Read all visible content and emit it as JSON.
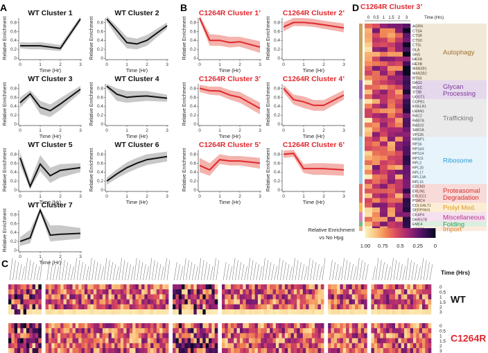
{
  "panel_labels": {
    "a": "A",
    "b": "B",
    "c": "C",
    "d": "D"
  },
  "common": {
    "x_label": "Time (Hr)",
    "y_label": "Relative Enrichment",
    "x_ticks": [
      "0",
      "1",
      "2",
      "3"
    ],
    "y_ticks": [
      "0",
      "0.2",
      "0.4",
      "0.6",
      "0.8"
    ]
  },
  "colors": {
    "wt_line": "#111111",
    "wt_band": "#c8c8c8",
    "mut_line": "#e0282e",
    "mut_band": "#f4b3ad",
    "mut_title": "#e0282e"
  },
  "chart_data": [
    {
      "type": "line",
      "panel": "A",
      "title": "WT Cluster 1",
      "x": [
        0,
        0.5,
        1,
        1.5,
        2,
        3
      ],
      "y": [
        0.28,
        0.28,
        0.28,
        0.25,
        0.22,
        0.88
      ],
      "band_low": [
        0.22,
        0.2,
        0.2,
        0.18,
        0.16,
        0.82
      ],
      "band_high": [
        0.36,
        0.35,
        0.36,
        0.33,
        0.3,
        0.94
      ],
      "ylim": [
        0,
        0.9
      ]
    },
    {
      "type": "line",
      "panel": "A",
      "title": "WT Cluster 2",
      "x": [
        0,
        0.5,
        1,
        1.5,
        2,
        3
      ],
      "y": [
        0.88,
        0.62,
        0.35,
        0.32,
        0.4,
        0.73
      ],
      "band_low": [
        0.82,
        0.48,
        0.22,
        0.2,
        0.28,
        0.66
      ],
      "band_high": [
        0.94,
        0.72,
        0.48,
        0.44,
        0.52,
        0.8
      ],
      "ylim": [
        0,
        0.9
      ]
    },
    {
      "type": "line",
      "panel": "A",
      "title": "WT Cluster 3",
      "x": [
        0,
        0.5,
        1,
        1.5,
        2,
        3
      ],
      "y": [
        0.48,
        0.68,
        0.38,
        0.3,
        0.45,
        0.78
      ],
      "band_low": [
        0.36,
        0.6,
        0.22,
        0.16,
        0.32,
        0.7
      ],
      "band_high": [
        0.6,
        0.76,
        0.52,
        0.44,
        0.58,
        0.86
      ],
      "ylim": [
        0,
        0.9
      ]
    },
    {
      "type": "line",
      "panel": "A",
      "title": "WT Cluster 4",
      "x": [
        0,
        0.5,
        1,
        1.5,
        2,
        3
      ],
      "y": [
        0.85,
        0.67,
        0.6,
        0.62,
        0.63,
        0.58
      ],
      "band_low": [
        0.8,
        0.52,
        0.48,
        0.5,
        0.52,
        0.5
      ],
      "band_high": [
        0.9,
        0.8,
        0.74,
        0.74,
        0.74,
        0.66
      ],
      "ylim": [
        0,
        0.9
      ]
    },
    {
      "type": "line",
      "panel": "A",
      "title": "WT Cluster 5",
      "x": [
        0,
        0.5,
        1,
        1.5,
        2,
        3
      ],
      "y": [
        0.72,
        0.08,
        0.58,
        0.32,
        0.44,
        0.5
      ],
      "band_low": [
        0.55,
        0.02,
        0.42,
        0.16,
        0.28,
        0.4
      ],
      "band_high": [
        0.85,
        0.2,
        0.78,
        0.5,
        0.58,
        0.6
      ],
      "ylim": [
        0,
        0.9
      ]
    },
    {
      "type": "line",
      "panel": "A",
      "title": "WT Cluster 6",
      "x": [
        0,
        0.5,
        1,
        1.5,
        2,
        3
      ],
      "y": [
        0.2,
        0.36,
        0.5,
        0.6,
        0.68,
        0.75
      ],
      "band_low": [
        0.12,
        0.26,
        0.38,
        0.48,
        0.56,
        0.64
      ],
      "band_high": [
        0.28,
        0.46,
        0.62,
        0.72,
        0.8,
        0.86
      ],
      "ylim": [
        0,
        0.9
      ]
    },
    {
      "type": "line",
      "panel": "A",
      "title": "WT Cluster 7",
      "x": [
        0,
        0.5,
        1,
        1.5,
        2,
        3
      ],
      "y": [
        0.2,
        0.28,
        0.9,
        0.34,
        0.36,
        0.38
      ],
      "band_low": [
        0.1,
        0.16,
        0.84,
        0.2,
        0.22,
        0.26
      ],
      "band_high": [
        0.3,
        0.46,
        0.94,
        0.56,
        0.56,
        0.5
      ],
      "ylim": [
        0,
        0.9
      ]
    },
    {
      "type": "line",
      "panel": "B",
      "title": "C1264R Cluster 1’",
      "x": [
        0,
        0.5,
        1,
        1.5,
        2,
        3
      ],
      "y": [
        0.9,
        0.4,
        0.4,
        0.35,
        0.37,
        0.25
      ],
      "band_low": [
        0.84,
        0.28,
        0.28,
        0.24,
        0.26,
        0.12
      ],
      "band_high": [
        0.95,
        0.54,
        0.52,
        0.48,
        0.48,
        0.38
      ],
      "ylim": [
        0,
        0.9
      ]
    },
    {
      "type": "line",
      "panel": "B",
      "title": "C1264R Cluster 2’",
      "x": [
        0,
        0.5,
        1,
        1.5,
        2,
        3
      ],
      "y": [
        0.7,
        0.8,
        0.8,
        0.78,
        0.75,
        0.68
      ],
      "band_low": [
        0.6,
        0.72,
        0.72,
        0.7,
        0.66,
        0.58
      ],
      "band_high": [
        0.8,
        0.9,
        0.9,
        0.88,
        0.84,
        0.78
      ],
      "ylim": [
        0,
        0.9
      ]
    },
    {
      "type": "line",
      "panel": "B",
      "title": "C1264R Cluster 3’",
      "x": [
        0,
        0.5,
        1,
        1.5,
        2,
        3
      ],
      "y": [
        0.8,
        0.75,
        0.74,
        0.65,
        0.6,
        0.35
      ],
      "band_low": [
        0.72,
        0.66,
        0.64,
        0.55,
        0.48,
        0.22
      ],
      "band_high": [
        0.88,
        0.84,
        0.84,
        0.76,
        0.72,
        0.48
      ],
      "ylim": [
        0,
        0.9
      ]
    },
    {
      "type": "line",
      "panel": "B",
      "title": "C1264R Cluster 4’",
      "x": [
        0,
        0.5,
        1,
        1.5,
        2,
        3
      ],
      "y": [
        0.8,
        0.55,
        0.5,
        0.42,
        0.42,
        0.65
      ],
      "band_low": [
        0.72,
        0.44,
        0.36,
        0.3,
        0.3,
        0.55
      ],
      "band_high": [
        0.88,
        0.66,
        0.62,
        0.54,
        0.54,
        0.76
      ],
      "ylim": [
        0,
        0.9
      ]
    },
    {
      "type": "line",
      "panel": "B",
      "title": "C1264R Cluster 5’",
      "x": [
        0,
        0.5,
        1,
        1.5,
        2,
        3
      ],
      "y": [
        0.55,
        0.45,
        0.68,
        0.65,
        0.65,
        0.6
      ],
      "band_low": [
        0.4,
        0.32,
        0.58,
        0.55,
        0.55,
        0.48
      ],
      "band_high": [
        0.72,
        0.6,
        0.8,
        0.76,
        0.76,
        0.72
      ],
      "ylim": [
        0,
        0.9
      ]
    },
    {
      "type": "line",
      "panel": "B",
      "title": "C1264R Cluster 6’",
      "x": [
        0,
        0.5,
        1,
        1.5,
        2,
        3
      ],
      "y": [
        0.8,
        0.82,
        0.48,
        0.48,
        0.48,
        0.45
      ],
      "band_low": [
        0.72,
        0.74,
        0.38,
        0.34,
        0.34,
        0.32
      ],
      "band_high": [
        0.88,
        0.9,
        0.58,
        0.6,
        0.6,
        0.58
      ],
      "ylim": [
        0,
        0.9
      ]
    },
    {
      "type": "heatmap",
      "panel": "D",
      "title": "C1264R Cluster 3’",
      "x_label": "Time (Hrs)",
      "columns": [
        "0",
        "0.5",
        "1",
        "1.5",
        "2",
        "3"
      ],
      "rows": [
        "AGRN",
        "CTSA",
        "CTSB",
        "CTSD",
        "CTSL",
        "GLA",
        "GNS",
        "HEXA",
        "HEXB",
        "MAN2B1",
        "MAN2B2",
        "RTN3",
        "DAG1",
        "MLEC",
        "ST3B",
        "UGGT1",
        "COPB1",
        "KDELR1",
        "LMAN1",
        "RAC2",
        "RAB7A",
        "RAB10",
        "SAR1A",
        "VPS35",
        "RRBP1",
        "RPS6",
        "RPS4X",
        "RPS14",
        "RPS11",
        "RPL3",
        "RPL28",
        "RPL17",
        "RPL13A",
        "RPL15",
        "EDEM3",
        "ERLIN1",
        "ERLEC1",
        "PSMC4",
        "COLGALT1",
        "SERPINH1",
        "CKAP4",
        "DHRS7B",
        "EMC4",
        "SPCS2"
      ],
      "categories": [
        {
          "name": "Autophagy",
          "color": "#c8a25e",
          "text_color": "#9a6e2c",
          "count": 12
        },
        {
          "name": "Glycan Processing",
          "color": "#9a63b5",
          "text_color": "#7a3a98",
          "count": 4
        },
        {
          "name": "Trafficking",
          "color": "#ababab",
          "text_color": "#777777",
          "count": 8
        },
        {
          "name": "Ribosome",
          "color": "#9ed4f0",
          "text_color": "#2a9ed8",
          "count": 10
        },
        {
          "name": "Proteasomal Degradation",
          "color": "#e26b67",
          "text_color": "#d2322f",
          "count": 4
        },
        {
          "name": "Prolyl Mod.",
          "color": "#f2bd54",
          "text_color": "#e09a16",
          "count": 2
        },
        {
          "name": "Miscellaneous",
          "color": "#d982bf",
          "text_color": "#b8338f",
          "count": 2
        },
        {
          "name": "Folding",
          "color": "#6cbf83",
          "text_color": "#2f9b51",
          "count": 1
        },
        {
          "name": "Import",
          "color": "#f0b07a",
          "text_color": "#e27a26",
          "count": 1
        }
      ],
      "legend": {
        "title_line1": "Relative Enrichment",
        "title_line2": "vs No Hpg",
        "ticks": [
          "1.00",
          "0.75",
          "0.5",
          "0.25",
          "0"
        ]
      }
    },
    {
      "type": "heatmap",
      "panel": "C",
      "title": "",
      "x_label": "Time (Hrs)",
      "rows": [
        "0",
        "0.5",
        "1",
        "1.5",
        "2",
        "3"
      ],
      "conditions": [
        "WT",
        "C1264R"
      ],
      "block_sizes": [
        11,
        41,
        15,
        34,
        13,
        20
      ]
    }
  ]
}
